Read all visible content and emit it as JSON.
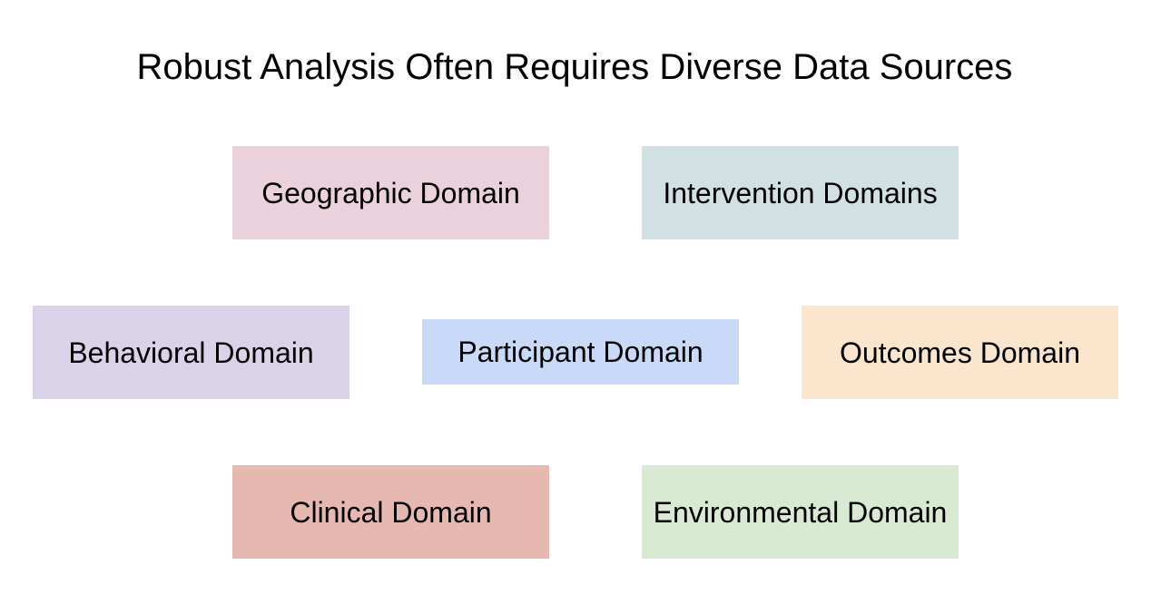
{
  "title": "Robust Analysis Often Requires Diverse Data Sources",
  "domains": [
    {
      "id": "geographic",
      "label": "Geographic Domain",
      "color": "#ead1dc"
    },
    {
      "id": "intervention",
      "label": "Intervention Domains",
      "color": "#d0e0e3"
    },
    {
      "id": "behavioral",
      "label": "Behavioral Domain",
      "color": "#d9d2e9"
    },
    {
      "id": "participant",
      "label": "Participant Domain",
      "color": "#c9daf8"
    },
    {
      "id": "outcomes",
      "label": "Outcomes Domain",
      "color": "#fce5cd"
    },
    {
      "id": "clinical",
      "label": "Clinical Domain",
      "color": "#e6b8af"
    },
    {
      "id": "environmental",
      "label": "Environmental Domain",
      "color": "#d9ead3"
    }
  ]
}
